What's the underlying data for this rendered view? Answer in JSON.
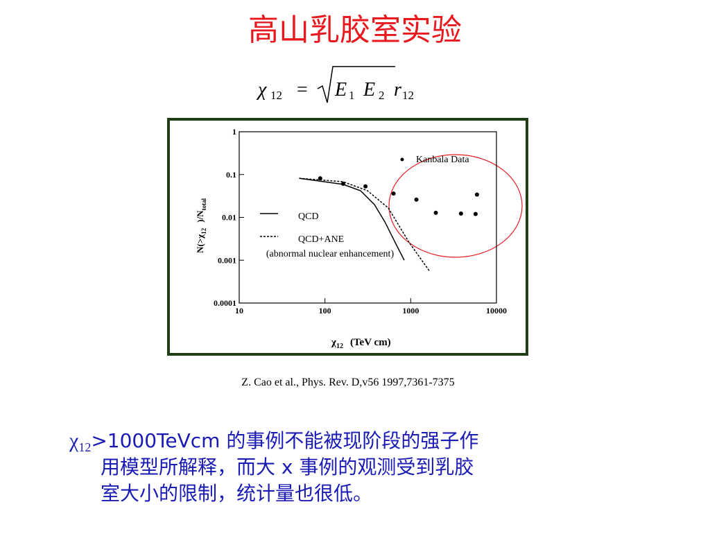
{
  "title": "高山乳胶室实验",
  "formula": {
    "lhs": "χ",
    "lhs_sub": "12",
    "eq": "=",
    "e1": "E",
    "e1_sub": "1",
    "e2": "E",
    "e2_sub": "2",
    "r": "r",
    "r_sub": "12"
  },
  "chart_data": {
    "type": "scatter",
    "x_label": {
      "symbol": "χ",
      "sub": "12",
      "unit": "(TeV cm)"
    },
    "y_label": {
      "a": "N(>χ",
      "a_sub": "12",
      "b": ")/N",
      "b_sub": "total"
    },
    "xlog": true,
    "ylog": true,
    "xlim": [
      10,
      10000
    ],
    "ylim": [
      0.0001,
      1
    ],
    "xticks": [
      10,
      100,
      1000,
      10000
    ],
    "yticks": [
      0.0001,
      0.001,
      0.01,
      0.1,
      1
    ],
    "series": [
      {
        "name": "Kanbala Data",
        "color": "#000000",
        "mode": "markers",
        "x": [
          88,
          163,
          297,
          631,
          1166,
          1963,
          3860,
          5710,
          5930
        ],
        "values": [
          0.082,
          0.061,
          0.053,
          0.036,
          0.026,
          0.0128,
          0.0123,
          0.012,
          0.034
        ]
      },
      {
        "name": "QCD",
        "color": "#000000",
        "mode": "line",
        "x": [
          50,
          163,
          260,
          377,
          499,
          659,
          840
        ],
        "values": [
          0.082,
          0.059,
          0.042,
          0.02,
          0.0079,
          0.0026,
          0.001
        ]
      },
      {
        "name": "QCD+ANE",
        "color": "#000000",
        "mode": "dashed",
        "x": [
          50,
          163,
          313,
          548,
          957,
          1675
        ],
        "values": [
          0.082,
          0.068,
          0.042,
          0.0166,
          0.0026,
          0.00054
        ]
      }
    ],
    "annotation": "(abnormal nuclear enhancement)"
  },
  "citation": "Z. Cao et al., Phys. Rev. D,v56 1997,7361-7375",
  "body": {
    "prefix": "χ",
    "sub": "12",
    "lines": [
      ">1000TeVcm 的事例不能被现阶段的强子作",
      "用模型所解释，而大 x 事例的观测受到乳胶",
      "室大小的限制，统计量也很低。"
    ]
  }
}
